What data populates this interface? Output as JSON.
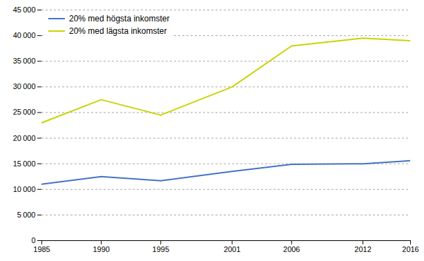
{
  "chart_data": {
    "type": "line",
    "x": [
      1985,
      1990,
      1995,
      2001,
      2006,
      2012,
      2016
    ],
    "series": [
      {
        "name": "20% med högsta inkomster",
        "color": "#4472c4",
        "values": [
          11000,
          12500,
          11700,
          13500,
          14900,
          15000,
          15600
        ]
      },
      {
        "name": "20% med lägsta inkomster",
        "color": "#c8d400",
        "values": [
          23000,
          27500,
          24500,
          30000,
          38000,
          39500,
          39000
        ]
      }
    ],
    "xlim": [
      1985,
      2016
    ],
    "xticks": [
      1985,
      1990,
      1995,
      2001,
      2006,
      2012,
      2016
    ],
    "ylim": [
      0,
      45000
    ],
    "yticks": [
      0,
      {
        "value": 5000,
        "label": "5 000"
      },
      {
        "value": 10000,
        "label": "10 000"
      },
      {
        "value": 15000,
        "label": "15 000"
      },
      {
        "value": 20000,
        "label": "20 000"
      },
      {
        "value": 25000,
        "label": "25 000"
      },
      {
        "value": 30000,
        "label": "30 000"
      },
      {
        "value": 35000,
        "label": "35 000"
      },
      {
        "value": 40000,
        "label": "40 000"
      },
      {
        "value": 45000,
        "label": "45 000"
      }
    ],
    "grid": true,
    "legend": "upper left"
  }
}
